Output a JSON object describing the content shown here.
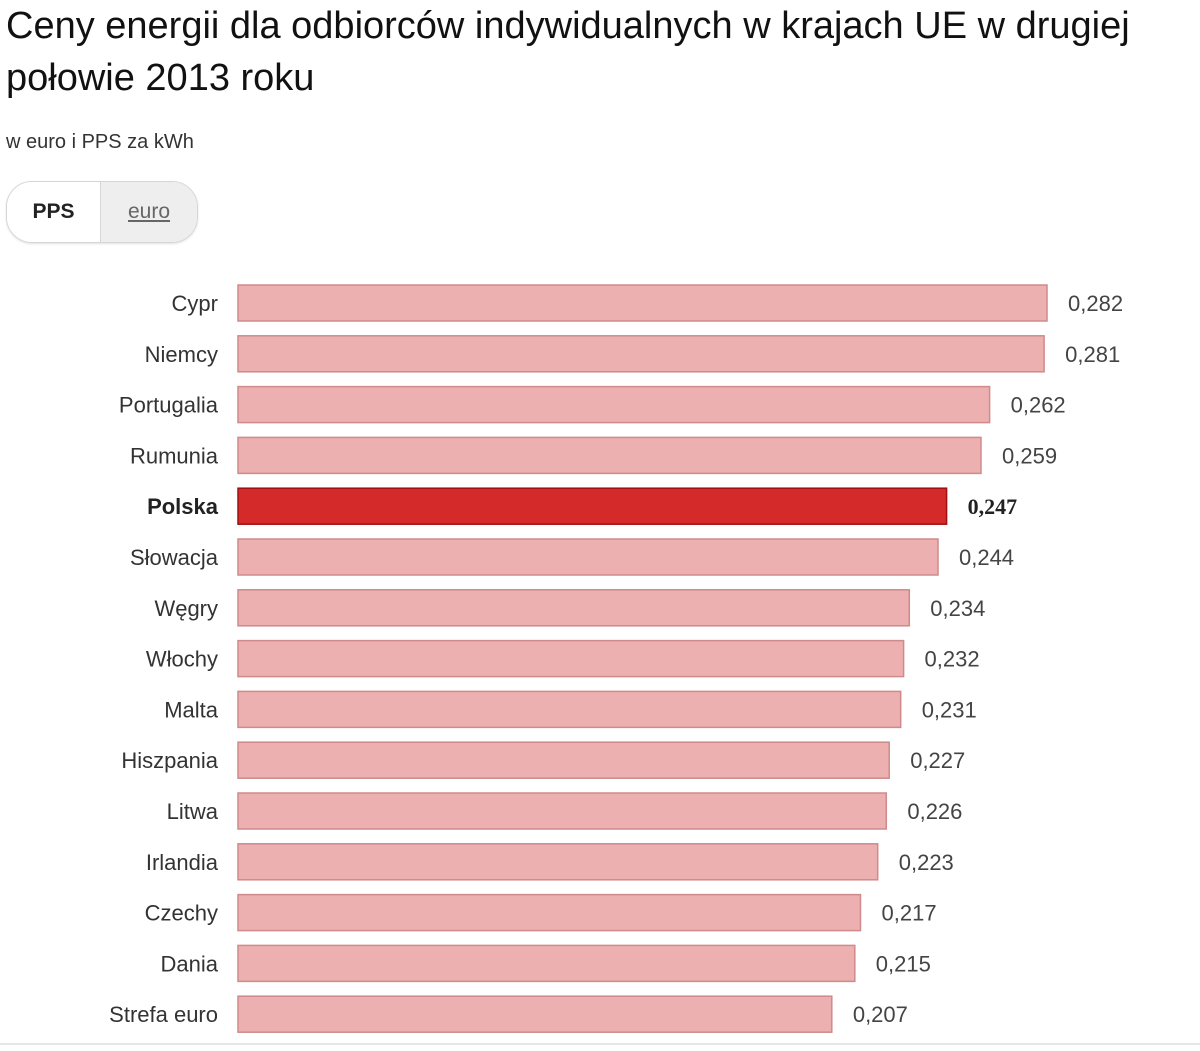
{
  "title": "Ceny energii dla odbiorców indywidualnych w krajach UE w drugiej połowie 2013 roku",
  "subtitle": "w euro i PPS za kWh",
  "toggle": {
    "pps_label": "PPS",
    "euro_label": "euro",
    "selected": "PPS"
  },
  "colors": {
    "bar": "#ecb0b0",
    "bar_stroke": "#cf8a8a",
    "highlight": "#d42a2a",
    "highlight_stroke": "#9f1010"
  },
  "chart_data": {
    "type": "bar",
    "orientation": "horizontal",
    "title": "Ceny energii dla odbiorców indywidualnych w krajach UE w drugiej połowie 2013 roku",
    "unit": "w euro i PPS za kWh",
    "series_name": "PPS",
    "highlight": "Polska",
    "xlim": [
      0,
      0.282
    ],
    "categories": [
      "Cypr",
      "Niemcy",
      "Portugalia",
      "Rumunia",
      "Polska",
      "Słowacja",
      "Węgry",
      "Włochy",
      "Malta",
      "Hiszpania",
      "Litwa",
      "Irlandia",
      "Czechy",
      "Dania",
      "Strefa euro"
    ],
    "values": [
      0.282,
      0.281,
      0.262,
      0.259,
      0.247,
      0.244,
      0.234,
      0.232,
      0.231,
      0.227,
      0.226,
      0.223,
      0.217,
      0.215,
      0.207
    ],
    "value_labels": [
      "0,282",
      "0,281",
      "0,262",
      "0,259",
      "0,247",
      "0,244",
      "0,234",
      "0,232",
      "0,231",
      "0,227",
      "0,226",
      "0,223",
      "0,217",
      "0,215",
      "0,207"
    ]
  }
}
